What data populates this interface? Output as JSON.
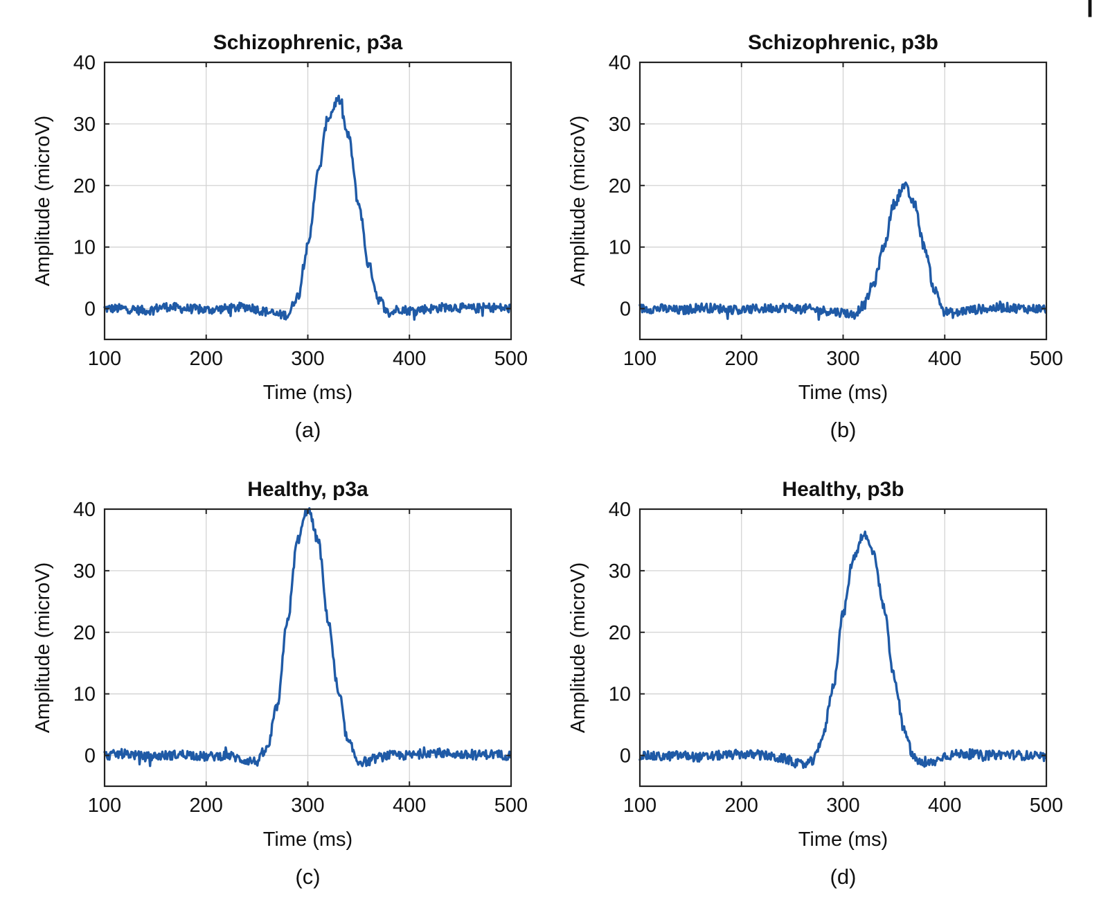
{
  "figure": {
    "corner_mark": "|"
  },
  "style": {
    "line_color": "#1f5aa6",
    "grid_color": "#d3d3d3",
    "axis_color": "#222222"
  },
  "chart_data": [
    {
      "type": "line",
      "title": "Schizophrenic, p3a",
      "caption": "(a)",
      "xlabel": "Time (ms)",
      "ylabel": "Amplitude (microV)",
      "xlim": [
        100,
        500
      ],
      "ylim": [
        -5,
        40
      ],
      "xticks": [
        100,
        200,
        300,
        400,
        500
      ],
      "yticks": [
        0,
        10,
        20,
        30,
        40
      ],
      "grid": true,
      "series": [
        {
          "name": "Schizophrenic, p3a",
          "x": [
            100,
            120,
            140,
            160,
            180,
            200,
            220,
            240,
            260,
            270,
            280,
            290,
            300,
            310,
            320,
            330,
            340,
            350,
            360,
            370,
            380,
            390,
            400,
            420,
            440,
            460,
            480,
            500
          ],
          "y": [
            0,
            0,
            -0.3,
            0.3,
            0,
            -0.2,
            0,
            0.3,
            -0.5,
            -1,
            -1,
            2,
            10,
            22,
            31,
            34,
            28,
            17,
            7,
            1.5,
            -0.8,
            0,
            -0.3,
            0,
            0.3,
            0,
            0.2,
            0
          ]
        }
      ]
    },
    {
      "type": "line",
      "title": "Schizophrenic, p3b",
      "caption": "(b)",
      "xlabel": "Time (ms)",
      "ylabel": "Amplitude (microV)",
      "xlim": [
        100,
        500
      ],
      "ylim": [
        -5,
        40
      ],
      "xticks": [
        100,
        200,
        300,
        400,
        500
      ],
      "yticks": [
        0,
        10,
        20,
        30,
        40
      ],
      "grid": true,
      "series": [
        {
          "name": "Schizophrenic, p3b",
          "x": [
            100,
            120,
            140,
            160,
            180,
            200,
            220,
            240,
            260,
            280,
            300,
            310,
            320,
            330,
            340,
            350,
            360,
            370,
            380,
            390,
            400,
            410,
            420,
            440,
            460,
            480,
            500
          ],
          "y": [
            0,
            0,
            -0.3,
            0.2,
            0,
            -0.2,
            0,
            0.2,
            0,
            -0.3,
            -0.6,
            -1,
            0.5,
            4,
            10,
            17,
            20,
            17,
            10,
            3,
            -0.5,
            -0.8,
            -0.3,
            0,
            0.2,
            0,
            0
          ]
        }
      ]
    },
    {
      "type": "line",
      "title": "Healthy, p3a",
      "caption": "(c)",
      "xlabel": "Time (ms)",
      "ylabel": "Amplitude (microV)",
      "xlim": [
        100,
        500
      ],
      "ylim": [
        -5,
        40
      ],
      "xticks": [
        100,
        200,
        300,
        400,
        500
      ],
      "yticks": [
        0,
        10,
        20,
        30,
        40
      ],
      "grid": true,
      "series": [
        {
          "name": "Healthy, p3a",
          "x": [
            100,
            120,
            140,
            160,
            180,
            200,
            220,
            240,
            250,
            260,
            270,
            280,
            290,
            300,
            310,
            320,
            330,
            340,
            350,
            360,
            370,
            380,
            400,
            420,
            440,
            460,
            480,
            500
          ],
          "y": [
            0,
            0.3,
            -0.2,
            0,
            0.2,
            -0.2,
            0,
            -0.8,
            -1,
            1,
            8,
            22,
            35,
            40,
            35,
            22,
            10,
            2,
            -1,
            -1,
            -0.3,
            0,
            0,
            0.5,
            0.3,
            0,
            0.2,
            0
          ]
        }
      ]
    },
    {
      "type": "line",
      "title": "Healthy, p3b",
      "caption": "(d)",
      "xlabel": "Time (ms)",
      "ylabel": "Amplitude (microV)",
      "xlim": [
        100,
        500
      ],
      "ylim": [
        -5,
        40
      ],
      "xticks": [
        100,
        200,
        300,
        400,
        500
      ],
      "yticks": [
        0,
        10,
        20,
        30,
        40
      ],
      "grid": true,
      "series": [
        {
          "name": "Healthy, p3b",
          "x": [
            100,
            120,
            140,
            160,
            180,
            200,
            220,
            240,
            260,
            270,
            280,
            290,
            300,
            310,
            320,
            330,
            340,
            350,
            360,
            370,
            380,
            390,
            400,
            420,
            440,
            460,
            480,
            500
          ],
          "y": [
            0,
            -0.2,
            0,
            -0.3,
            0,
            0.2,
            0,
            -0.5,
            -1.5,
            -1,
            3,
            11,
            23,
            32,
            36,
            33,
            24,
            13,
            4,
            -0.5,
            -1.5,
            -1,
            0,
            0.3,
            0,
            0.2,
            0,
            -0.3
          ]
        }
      ]
    }
  ]
}
